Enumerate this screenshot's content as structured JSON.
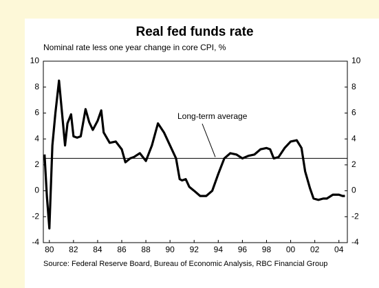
{
  "chart_data": {
    "type": "line",
    "title": "Real fed funds rate",
    "subtitle": "Nominal rate less one year change in core CPI, %",
    "source": "Source: Federal Reserve Board, Bureau of Economic Analysis, RBC Financial Group",
    "x": [
      1979.6,
      1979.8,
      1980.0,
      1980.25,
      1980.5,
      1980.8,
      1981.0,
      1981.3,
      1981.5,
      1981.8,
      1982.0,
      1982.3,
      1982.6,
      1983.0,
      1983.3,
      1983.6,
      1984.0,
      1984.3,
      1984.5,
      1985.0,
      1985.5,
      1986.0,
      1986.3,
      1986.7,
      1987.0,
      1987.5,
      1988.0,
      1988.5,
      1989.0,
      1989.5,
      1990.0,
      1990.5,
      1990.8,
      1991.0,
      1991.3,
      1991.6,
      1992.0,
      1992.5,
      1993.0,
      1993.5,
      1994.0,
      1994.5,
      1995.0,
      1995.5,
      1996.0,
      1996.5,
      1997.0,
      1997.5,
      1998.0,
      1998.3,
      1998.6,
      1999.0,
      1999.5,
      2000.0,
      2000.5,
      2000.9,
      2001.2,
      2001.6,
      2001.9,
      2002.3,
      2002.7,
      2003.0,
      2003.5,
      2004.0,
      2004.3,
      2004.5
    ],
    "series": [
      {
        "name": "Real fed funds rate",
        "color": "#000000",
        "values": [
          2.8,
          -0.5,
          -2.9,
          3.5,
          6.0,
          8.5,
          6.5,
          3.5,
          5.2,
          5.9,
          4.2,
          4.1,
          4.2,
          6.3,
          5.3,
          4.7,
          5.4,
          6.2,
          4.5,
          3.7,
          3.8,
          3.2,
          2.2,
          2.5,
          2.6,
          2.9,
          2.3,
          3.5,
          5.2,
          4.5,
          3.5,
          2.5,
          0.9,
          0.8,
          0.9,
          0.3,
          0.0,
          -0.4,
          -0.4,
          0.0,
          1.3,
          2.5,
          2.9,
          2.8,
          2.5,
          2.7,
          2.8,
          3.2,
          3.3,
          3.2,
          2.5,
          2.6,
          3.3,
          3.8,
          3.9,
          3.3,
          1.5,
          0.2,
          -0.6,
          -0.7,
          -0.6,
          -0.6,
          -0.3,
          -0.3,
          -0.4,
          -0.4
        ]
      }
    ],
    "reference_line": {
      "value": 2.5,
      "label": "Long-term average"
    },
    "xlim": [
      1979.5,
      2004.7
    ],
    "xticks": [
      {
        "value": 1980,
        "label": "80"
      },
      {
        "value": 1982,
        "label": "82"
      },
      {
        "value": 1984,
        "label": "84"
      },
      {
        "value": 1986,
        "label": "86"
      },
      {
        "value": 1988,
        "label": "88"
      },
      {
        "value": 1990,
        "label": "90"
      },
      {
        "value": 1992,
        "label": "92"
      },
      {
        "value": 1994,
        "label": "94"
      },
      {
        "value": 1996,
        "label": "96"
      },
      {
        "value": 1998,
        "label": "98"
      },
      {
        "value": 2000,
        "label": "00"
      },
      {
        "value": 2002,
        "label": "02"
      },
      {
        "value": 2004,
        "label": "04"
      }
    ],
    "ylim": [
      -4,
      10
    ],
    "yticks": [
      -4,
      -2,
      0,
      2,
      4,
      6,
      8,
      10
    ],
    "grid": false
  }
}
